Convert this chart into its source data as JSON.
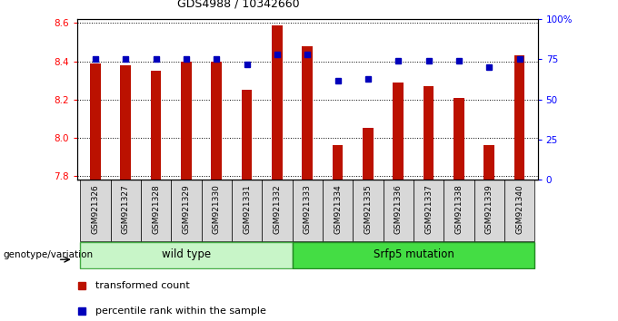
{
  "title": "GDS4988 / 10342660",
  "samples": [
    "GSM921326",
    "GSM921327",
    "GSM921328",
    "GSM921329",
    "GSM921330",
    "GSM921331",
    "GSM921332",
    "GSM921333",
    "GSM921334",
    "GSM921335",
    "GSM921336",
    "GSM921337",
    "GSM921338",
    "GSM921339",
    "GSM921340"
  ],
  "transformed_count": [
    8.39,
    8.38,
    8.35,
    8.4,
    8.4,
    8.25,
    8.59,
    8.48,
    7.96,
    8.05,
    8.29,
    8.27,
    8.21,
    7.96,
    8.43
  ],
  "percentile_rank": [
    75,
    75,
    75,
    75,
    75,
    72,
    78,
    78,
    62,
    63,
    74,
    74,
    74,
    70,
    75
  ],
  "groups": [
    {
      "label": "wild type",
      "start": 0,
      "end": 6,
      "color_face": "#c8f5c8",
      "color_edge": "#44aa44"
    },
    {
      "label": "Srfp5 mutation",
      "start": 7,
      "end": 14,
      "color_face": "#44dd44",
      "color_edge": "#228822"
    }
  ],
  "ylim_left": [
    7.78,
    8.62
  ],
  "ylim_right": [
    0,
    100
  ],
  "yticks_left": [
    7.8,
    8.0,
    8.2,
    8.4,
    8.6
  ],
  "yticks_right": [
    0,
    25,
    50,
    75,
    100
  ],
  "yticklabels_right": [
    "0",
    "25",
    "50",
    "75",
    "100%"
  ],
  "bar_color": "#BB1100",
  "dot_color": "#0000BB",
  "bar_width": 0.35,
  "grid_color": "black",
  "legend_items": [
    {
      "label": "transformed count",
      "color": "#BB1100"
    },
    {
      "label": "percentile rank within the sample",
      "color": "#0000BB"
    }
  ],
  "xlabel_group": "genotype/variation"
}
